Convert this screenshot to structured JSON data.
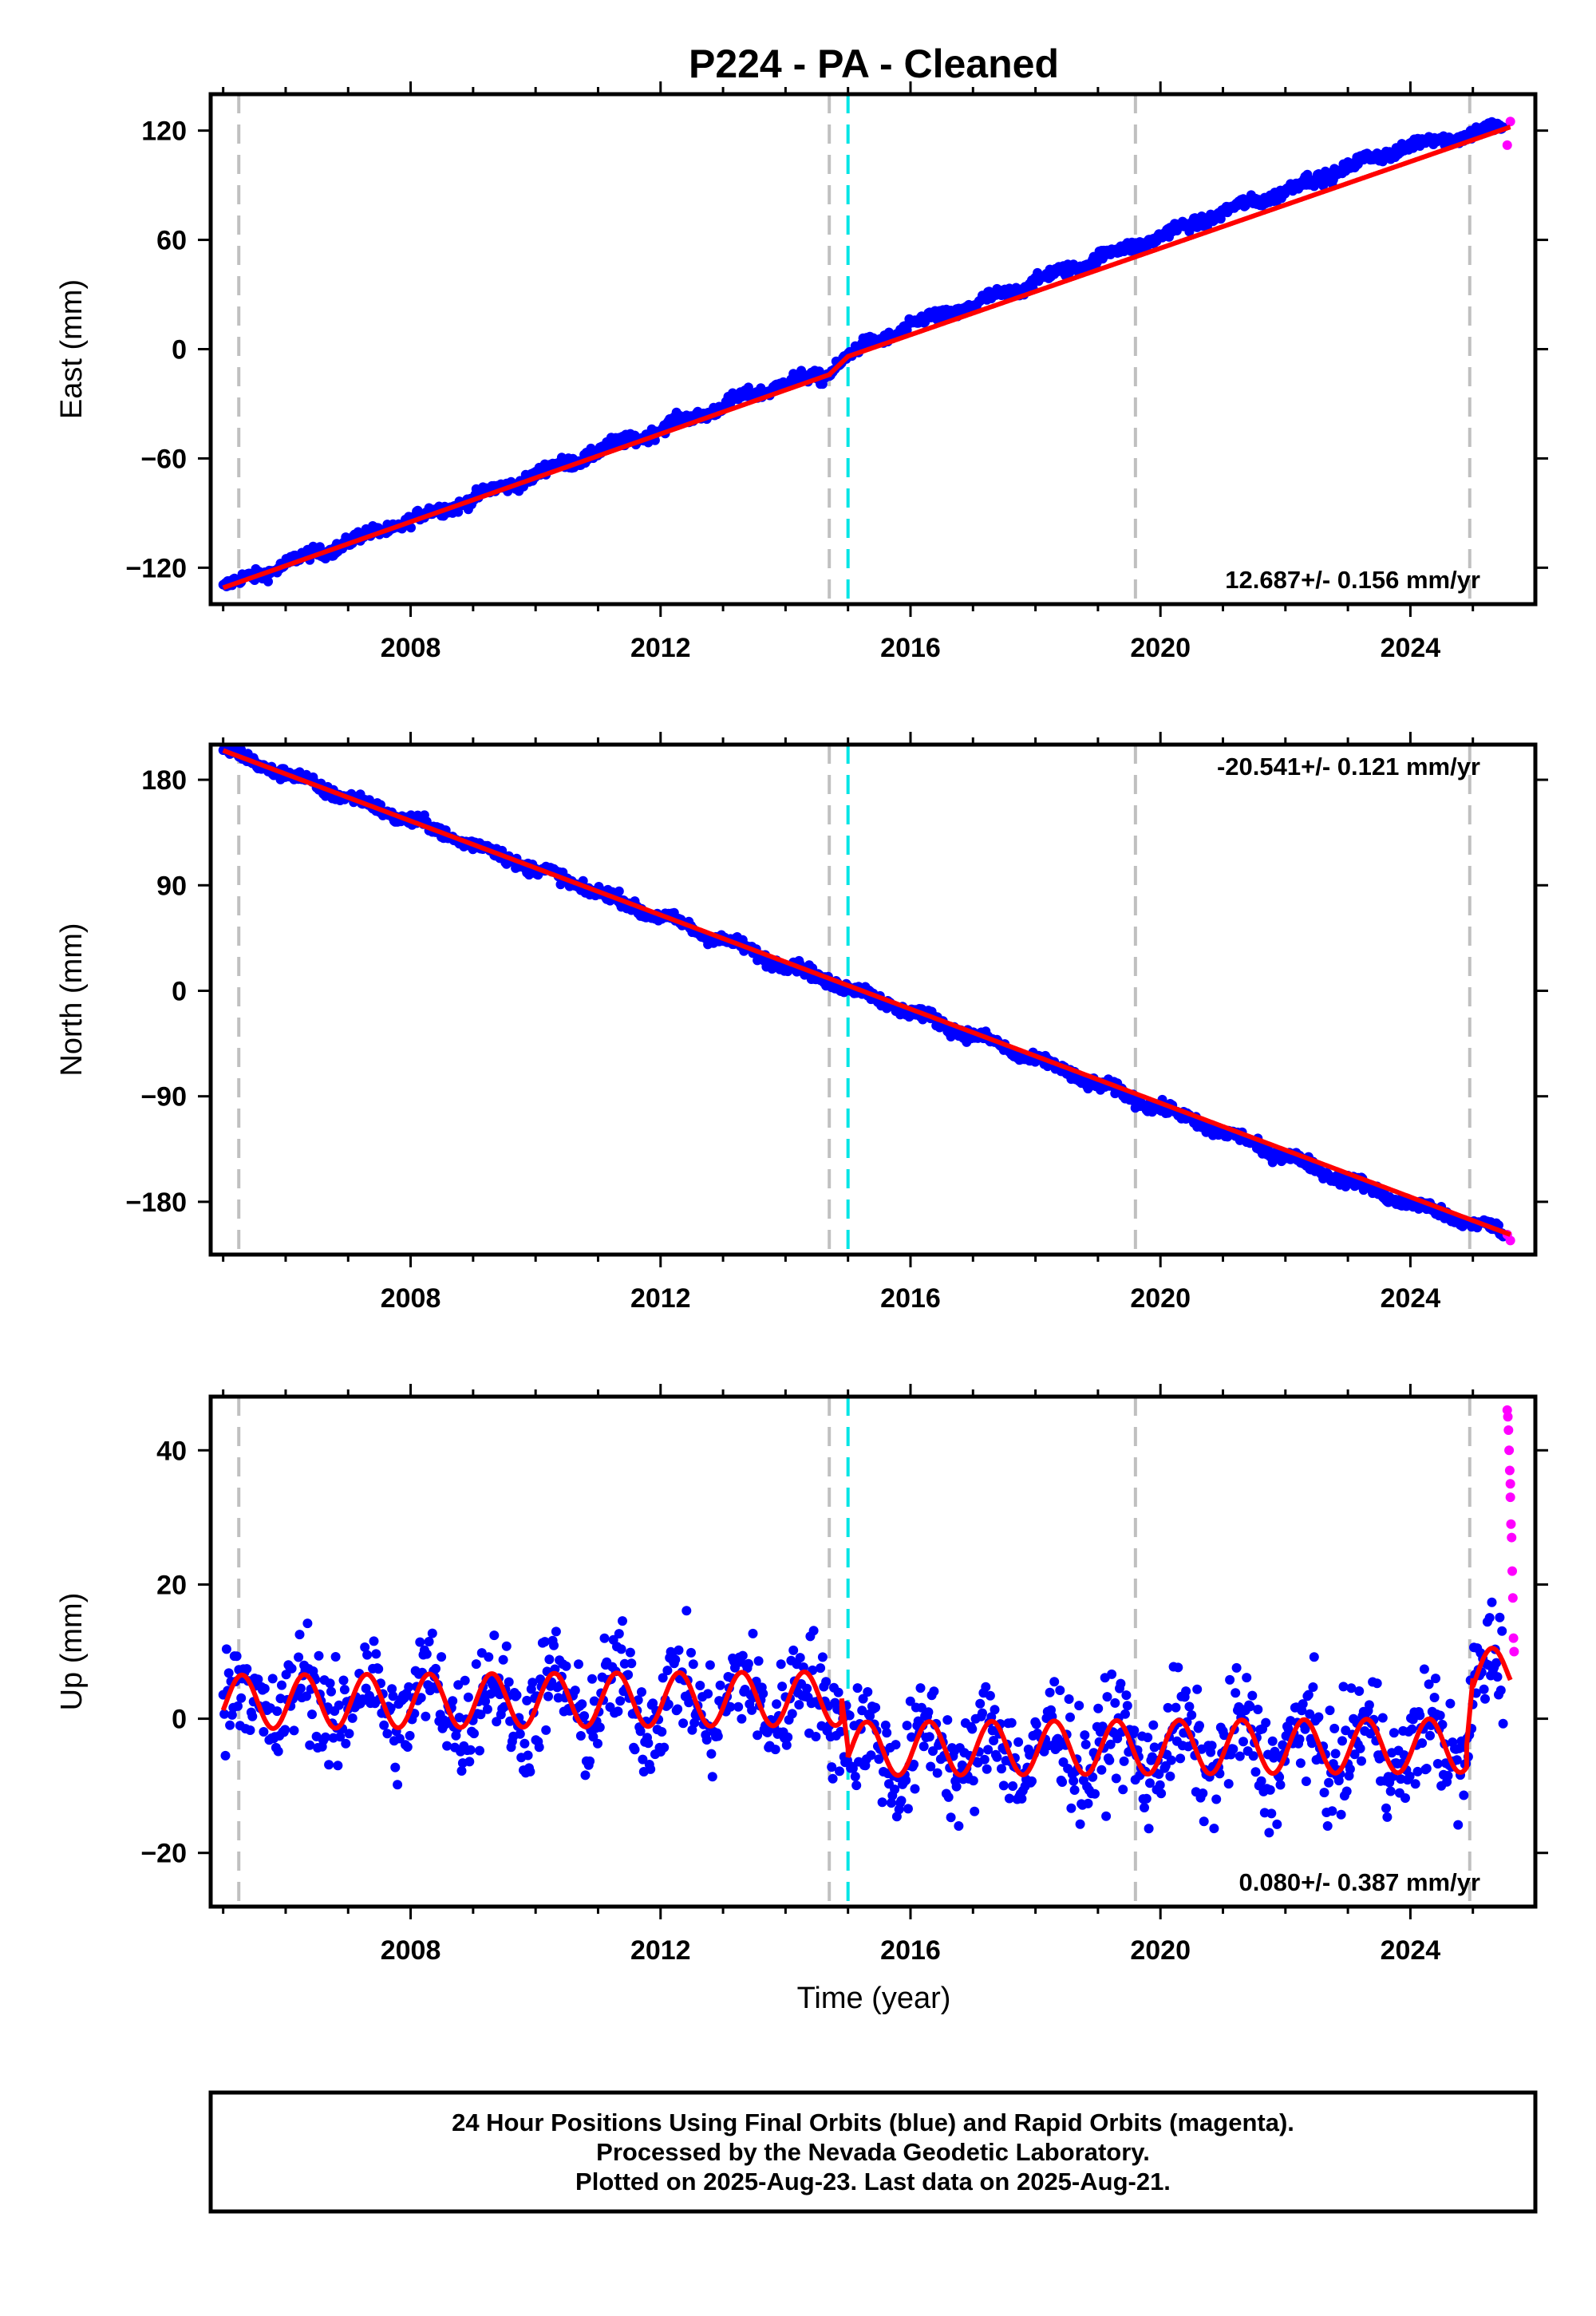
{
  "figure": {
    "title": "P224  - PA - Cleaned",
    "xlabel": "Time (year)",
    "footer": [
      "24 Hour Positions Using Final Orbits (blue) and Rapid Orbits (magenta).",
      "Processed by the Nevada Geodetic Laboratory.",
      "Plotted on 2025-Aug-23. Last data on 2025-Aug-21."
    ],
    "colors": {
      "final_orbits": "#0000ff",
      "rapid_orbits": "#ff00ff",
      "model": "#ff0000",
      "equipment_change": "#c0c0c0",
      "event": "#00e5e5"
    }
  },
  "chart_data": [
    {
      "type": "scatter",
      "component": "east",
      "ylabel": "East (mm)",
      "rate": "12.687+/- 0.156 mm/yr",
      "xlim": [
        2004.8,
        2026.0
      ],
      "ylim": [
        -140,
        140
      ],
      "yticks": [
        -120,
        -60,
        0,
        60,
        120
      ],
      "xticks": [
        2008,
        2012,
        2016,
        2020,
        2024
      ],
      "grid": false,
      "equipment_lines": [
        2005.25,
        2014.7,
        2019.6,
        2024.95
      ],
      "event_lines": [
        2015.0
      ],
      "series": [
        {
          "name": "Final Orbits",
          "x": [
            2005.0,
            2006.0,
            2007.0,
            2008.0,
            2009.0,
            2010.0,
            2011.0,
            2012.0,
            2013.0,
            2014.0,
            2014.6,
            2015.0,
            2016.0,
            2017.0,
            2018.0,
            2019.0,
            2020.0,
            2021.0,
            2022.0,
            2023.0,
            2024.0,
            2025.5
          ],
          "y": [
            -131,
            -118,
            -106,
            -94,
            -82,
            -69,
            -56,
            -44,
            -31,
            -18,
            -15,
            -3,
            13,
            24,
            37,
            50,
            62,
            75,
            87,
            100,
            112,
            122
          ]
        },
        {
          "name": "Rapid Orbits",
          "x": [
            2025.55,
            2025.6
          ],
          "y": [
            112,
            125
          ]
        },
        {
          "name": "Model",
          "x": [
            2005.0,
            2014.7,
            2015.0,
            2025.6
          ],
          "y": [
            -131,
            -14,
            -4,
            122
          ]
        }
      ]
    },
    {
      "type": "scatter",
      "component": "north",
      "ylabel": "North (mm)",
      "rate": "-20.541+/- 0.121 mm/yr",
      "xlim": [
        2004.8,
        2026.0
      ],
      "ylim": [
        -225,
        210
      ],
      "yticks": [
        -180,
        -90,
        0,
        90,
        180
      ],
      "xticks": [
        2008,
        2012,
        2016,
        2020,
        2024
      ],
      "grid": false,
      "equipment_lines": [
        2005.25,
        2014.7,
        2019.6,
        2024.95
      ],
      "event_lines": [
        2015.0
      ],
      "series": [
        {
          "name": "Final Orbits",
          "x": [
            2005.0,
            2006.0,
            2007.0,
            2008.0,
            2009.0,
            2010.0,
            2011.0,
            2012.0,
            2013.0,
            2014.0,
            2015.0,
            2016.0,
            2017.0,
            2018.0,
            2019.0,
            2020.0,
            2021.0,
            2022.0,
            2023.0,
            2024.0,
            2025.5
          ],
          "y": [
            205,
            185,
            165,
            145,
            125,
            104,
            84,
            63,
            43,
            22,
            3,
            -18,
            -38,
            -59,
            -80,
            -100,
            -121,
            -141,
            -162,
            -182,
            -206
          ]
        },
        {
          "name": "Rapid Orbits",
          "x": [
            2025.55,
            2025.6
          ],
          "y": [
            -208,
            -213
          ]
        },
        {
          "name": "Model",
          "x": [
            2005.0,
            2025.6
          ],
          "y": [
            205,
            -208
          ]
        }
      ]
    },
    {
      "type": "scatter",
      "component": "up",
      "ylabel": "Up (mm)",
      "rate": "0.080+/- 0.387 mm/yr",
      "xlim": [
        2004.8,
        2026.0
      ],
      "ylim": [
        -28,
        48
      ],
      "yticks": [
        -20,
        0,
        20,
        40
      ],
      "xticks": [
        2008,
        2012,
        2016,
        2020,
        2024
      ],
      "grid": false,
      "equipment_lines": [
        2005.25,
        2014.7,
        2019.6,
        2024.95
      ],
      "event_lines": [
        2015.0
      ],
      "seasonal_amplitude_mm": 4,
      "series": [
        {
          "name": "Final Orbits",
          "x": [
            2005.0,
            2010.0,
            2014.9,
            2015.1,
            2020.0,
            2024.9,
            2025.0,
            2025.5
          ],
          "y": [
            2.5,
            2.5,
            3.0,
            -5.0,
            -4.5,
            -4.0,
            6.0,
            6.5
          ],
          "scatter_mm": 4
        },
        {
          "name": "Rapid Orbits",
          "x": [
            2025.55,
            2025.56,
            2025.57,
            2025.58,
            2025.59,
            2025.6,
            2025.6,
            2025.61,
            2025.62,
            2025.63,
            2025.64,
            2025.65,
            2025.66
          ],
          "y": [
            46,
            45,
            43,
            40,
            37,
            35,
            33,
            29,
            27,
            22,
            18,
            12,
            10
          ]
        },
        {
          "name": "Model",
          "x": [
            2005.0,
            2014.9,
            2015.0,
            2024.9,
            2025.0,
            2025.6
          ],
          "y": [
            2.5,
            3.0,
            -4.5,
            -4.0,
            6.0,
            7.0
          ]
        }
      ]
    }
  ]
}
